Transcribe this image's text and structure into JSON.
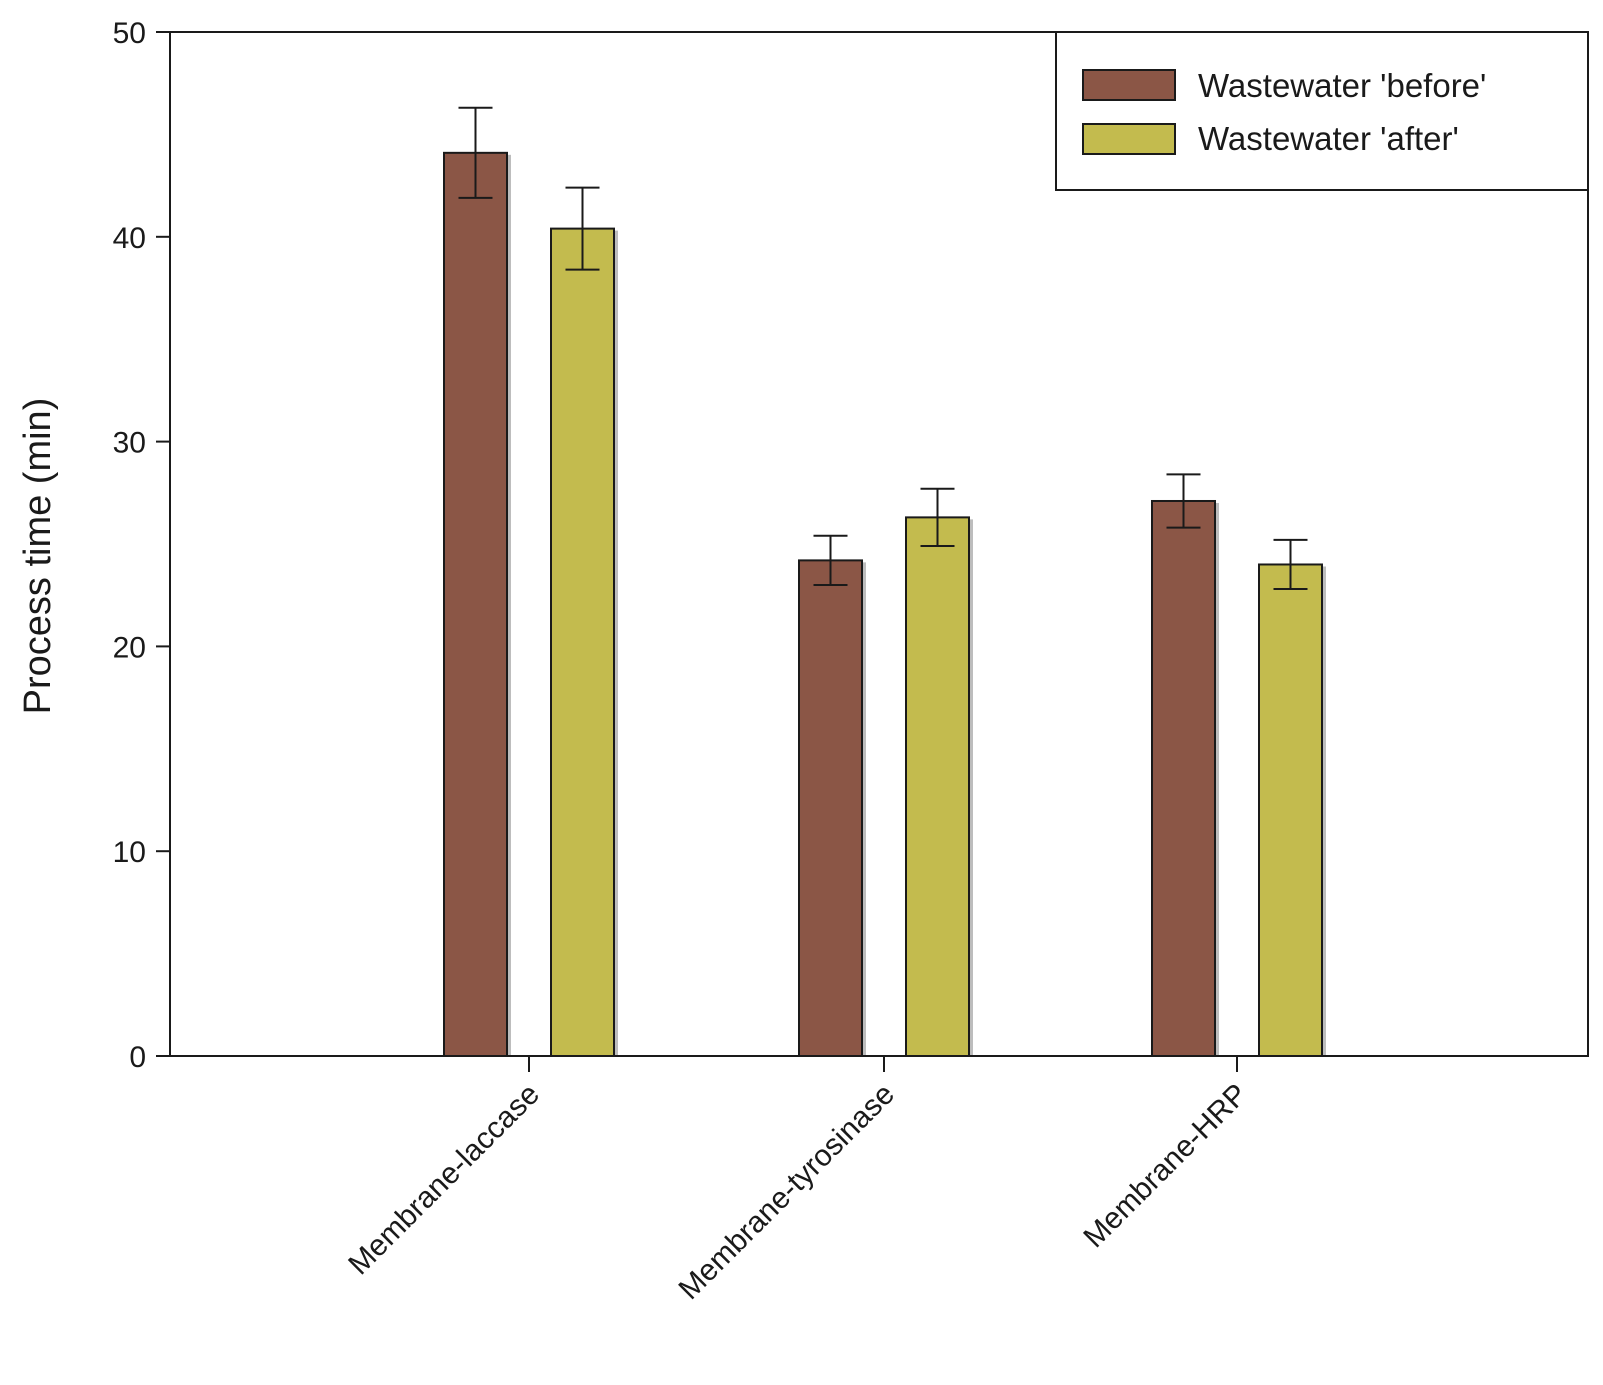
{
  "chart_data": {
    "type": "bar",
    "title": "",
    "xlabel": "",
    "ylabel": "Process time (min)",
    "ylim": [
      0,
      50
    ],
    "yticks": [
      0,
      10,
      20,
      30,
      40,
      50
    ],
    "categories": [
      "Membrane-laccase",
      "Membrane-tyrosinase",
      "Membrane-HRP"
    ],
    "series": [
      {
        "name": "Wastewater 'before'",
        "color": "#8b5646",
        "values": [
          44.1,
          24.2,
          27.1
        ],
        "errors": [
          2.2,
          1.2,
          1.3
        ]
      },
      {
        "name": "Wastewater 'after'",
        "color": "#c3bb4e",
        "values": [
          40.4,
          26.3,
          24.0
        ],
        "errors": [
          2.0,
          1.4,
          1.2
        ]
      }
    ],
    "legend_position": "top-right",
    "grid": false
  }
}
